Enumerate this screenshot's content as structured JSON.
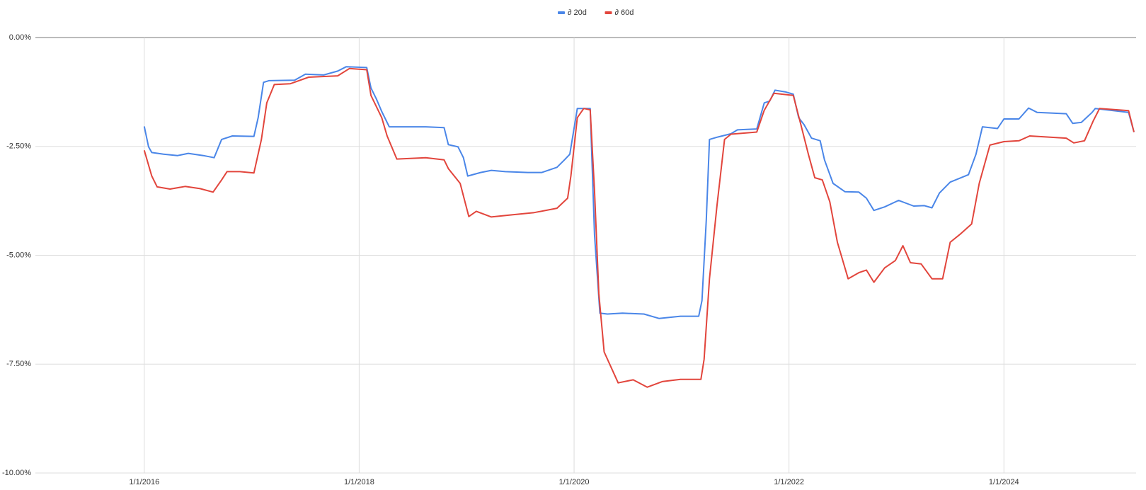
{
  "chart_data": {
    "type": "line",
    "xlim": [
      2015.0,
      2025.23
    ],
    "xticks": [
      {
        "value": 2016,
        "label": "1/1/2016"
      },
      {
        "value": 2018,
        "label": "1/1/2018"
      },
      {
        "value": 2020,
        "label": "1/1/2020"
      },
      {
        "value": 2022,
        "label": "1/1/2022"
      },
      {
        "value": 2024,
        "label": "1/1/2024"
      }
    ],
    "ylim": [
      -10,
      0
    ],
    "yticks": [
      {
        "value": 0,
        "label": "0.00%"
      },
      {
        "value": -2.5,
        "label": "-2.50%"
      },
      {
        "value": -5,
        "label": "-5.00%"
      },
      {
        "value": -7.5,
        "label": "-7.50%"
      },
      {
        "value": -10,
        "label": "-10.00%"
      }
    ],
    "grid": true,
    "legend": "top",
    "series": [
      {
        "name": "∂ 20d",
        "color": "#4a86e8",
        "x": [
          2016.0,
          2016.04,
          2016.07,
          2016.18,
          2016.31,
          2016.41,
          2016.55,
          2016.65,
          2016.72,
          2016.82,
          2017.02,
          2017.06,
          2017.11,
          2017.16,
          2017.4,
          2017.5,
          2017.67,
          2017.8,
          2017.88,
          2018.07,
          2018.11,
          2018.16,
          2018.21,
          2018.28,
          2018.62,
          2018.79,
          2018.83,
          2018.92,
          2018.97,
          2019.01,
          2019.13,
          2019.23,
          2019.36,
          2019.57,
          2019.7,
          2019.84,
          2019.91,
          2019.96,
          2020.03,
          2020.15,
          2020.19,
          2020.24,
          2020.31,
          2020.45,
          2020.65,
          2020.79,
          2020.99,
          2021.16,
          2021.19,
          2021.23,
          2021.26,
          2021.33,
          2021.46,
          2021.52,
          2021.7,
          2021.77,
          2021.82,
          2021.87,
          2021.97,
          2022.04,
          2022.09,
          2022.14,
          2022.21,
          2022.29,
          2022.33,
          2022.41,
          2022.52,
          2022.65,
          2022.72,
          2022.79,
          2022.89,
          2023.02,
          2023.16,
          2023.26,
          2023.33,
          2023.4,
          2023.5,
          2023.67,
          2023.74,
          2023.8,
          2023.94,
          2024.0,
          2024.14,
          2024.23,
          2024.31,
          2024.58,
          2024.64,
          2024.72,
          2024.82,
          2024.85,
          2025.16,
          2025.21
        ],
        "values": [
          -2.04,
          -2.51,
          -2.64,
          -2.68,
          -2.71,
          -2.66,
          -2.71,
          -2.76,
          -2.34,
          -2.26,
          -2.27,
          -1.84,
          -1.03,
          -0.99,
          -0.98,
          -0.84,
          -0.86,
          -0.77,
          -0.67,
          -0.69,
          -1.16,
          -1.41,
          -1.7,
          -2.05,
          -2.05,
          -2.07,
          -2.46,
          -2.51,
          -2.76,
          -3.18,
          -3.1,
          -3.05,
          -3.08,
          -3.1,
          -3.1,
          -2.98,
          -2.81,
          -2.68,
          -1.63,
          -1.63,
          -4.53,
          -6.33,
          -6.35,
          -6.33,
          -6.35,
          -6.45,
          -6.4,
          -6.4,
          -6.04,
          -4.19,
          -2.34,
          -2.29,
          -2.21,
          -2.12,
          -2.1,
          -1.5,
          -1.46,
          -1.21,
          -1.25,
          -1.3,
          -1.84,
          -2.0,
          -2.31,
          -2.37,
          -2.81,
          -3.35,
          -3.54,
          -3.55,
          -3.69,
          -3.97,
          -3.89,
          -3.74,
          -3.87,
          -3.86,
          -3.91,
          -3.57,
          -3.32,
          -3.15,
          -2.68,
          -2.05,
          -2.09,
          -1.87,
          -1.87,
          -1.62,
          -1.72,
          -1.75,
          -1.97,
          -1.95,
          -1.72,
          -1.63,
          -1.72,
          -2.17
        ]
      },
      {
        "name": "∂ 60d",
        "color": "#e2453c",
        "x": [
          2016.0,
          2016.07,
          2016.12,
          2016.24,
          2016.38,
          2016.52,
          2016.64,
          2016.72,
          2016.77,
          2016.89,
          2017.02,
          2017.09,
          2017.14,
          2017.21,
          2017.36,
          2017.53,
          2017.8,
          2017.91,
          2018.07,
          2018.11,
          2018.21,
          2018.26,
          2018.35,
          2018.62,
          2018.79,
          2018.83,
          2018.94,
          2019.02,
          2019.09,
          2019.23,
          2019.43,
          2019.63,
          2019.84,
          2019.94,
          2019.97,
          2020.03,
          2020.09,
          2020.15,
          2020.19,
          2020.23,
          2020.28,
          2020.41,
          2020.55,
          2020.68,
          2020.82,
          2020.99,
          2021.18,
          2021.21,
          2021.26,
          2021.33,
          2021.4,
          2021.46,
          2021.7,
          2021.77,
          2021.86,
          2022.04,
          2022.11,
          2022.18,
          2022.24,
          2022.31,
          2022.38,
          2022.45,
          2022.55,
          2022.65,
          2022.72,
          2022.79,
          2022.89,
          2022.99,
          2023.06,
          2023.13,
          2023.23,
          2023.33,
          2023.43,
          2023.5,
          2023.6,
          2023.7,
          2023.77,
          2023.87,
          2024.0,
          2024.14,
          2024.24,
          2024.58,
          2024.65,
          2024.75,
          2024.83,
          2024.89,
          2025.16,
          2025.21
        ],
        "values": [
          -2.59,
          -3.18,
          -3.43,
          -3.48,
          -3.42,
          -3.47,
          -3.55,
          -3.27,
          -3.08,
          -3.08,
          -3.11,
          -2.34,
          -1.5,
          -1.08,
          -1.06,
          -0.91,
          -0.88,
          -0.71,
          -0.74,
          -1.33,
          -1.84,
          -2.26,
          -2.79,
          -2.76,
          -2.81,
          -3.01,
          -3.35,
          -4.11,
          -3.99,
          -4.12,
          -4.07,
          -4.02,
          -3.92,
          -3.69,
          -3.18,
          -1.84,
          -1.63,
          -1.66,
          -3.52,
          -5.88,
          -7.22,
          -7.93,
          -7.86,
          -8.03,
          -7.9,
          -7.85,
          -7.85,
          -7.39,
          -5.54,
          -3.86,
          -2.34,
          -2.22,
          -2.17,
          -1.67,
          -1.28,
          -1.33,
          -2.0,
          -2.68,
          -3.22,
          -3.27,
          -3.77,
          -4.7,
          -5.54,
          -5.4,
          -5.34,
          -5.62,
          -5.29,
          -5.12,
          -4.78,
          -5.17,
          -5.2,
          -5.54,
          -5.54,
          -4.7,
          -4.5,
          -4.28,
          -3.35,
          -2.47,
          -2.39,
          -2.37,
          -2.26,
          -2.31,
          -2.42,
          -2.37,
          -1.92,
          -1.63,
          -1.68,
          -2.17
        ]
      }
    ]
  }
}
